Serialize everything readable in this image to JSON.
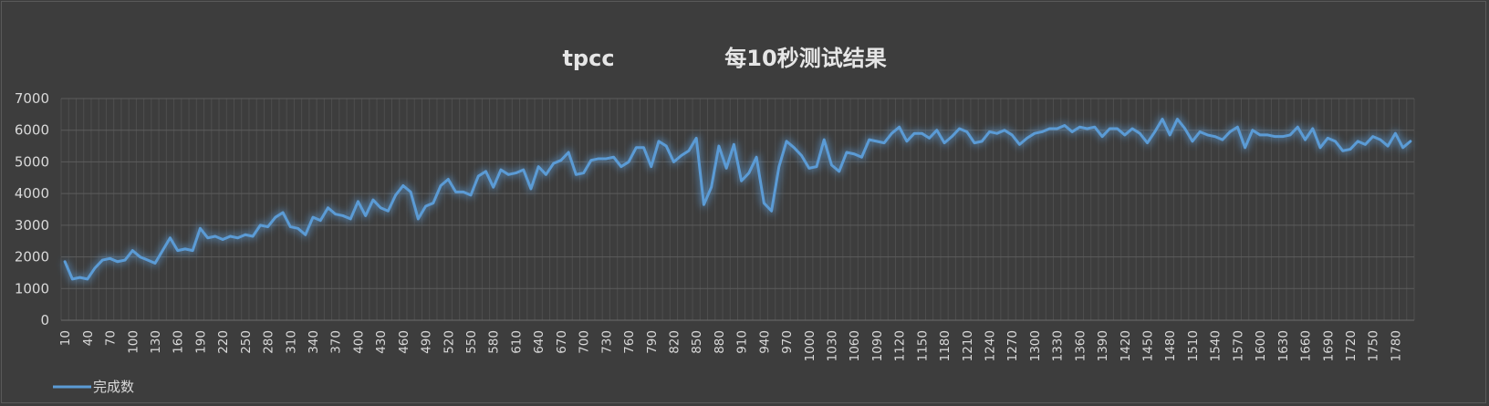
{
  "chart_data": {
    "type": "line",
    "title_parts": [
      "tpcc",
      "每10秒测试结果"
    ],
    "xlabel": "",
    "ylabel": "",
    "ylim": [
      0,
      7000
    ],
    "y_ticks": [
      0,
      1000,
      2000,
      3000,
      4000,
      5000,
      6000,
      7000
    ],
    "x_step": 10,
    "x_label_every": 3,
    "grid": true,
    "legend_position": "bottom-left",
    "series_color": "#5b9bd5",
    "series": [
      {
        "name": "完成数",
        "x": [
          10,
          20,
          30,
          40,
          50,
          60,
          70,
          80,
          90,
          100,
          110,
          120,
          130,
          140,
          150,
          160,
          170,
          180,
          190,
          200,
          210,
          220,
          230,
          240,
          250,
          260,
          270,
          280,
          290,
          300,
          310,
          320,
          330,
          340,
          350,
          360,
          370,
          380,
          390,
          400,
          410,
          420,
          430,
          440,
          450,
          460,
          470,
          480,
          490,
          500,
          510,
          520,
          530,
          540,
          550,
          560,
          570,
          580,
          590,
          600,
          610,
          620,
          630,
          640,
          650,
          660,
          670,
          680,
          690,
          700,
          710,
          720,
          730,
          740,
          750,
          760,
          770,
          780,
          790,
          800,
          810,
          820,
          830,
          840,
          850,
          860,
          870,
          880,
          890,
          900,
          910,
          920,
          930,
          940,
          950,
          960,
          970,
          980,
          990,
          1000,
          1010,
          1020,
          1030,
          1040,
          1050,
          1060,
          1070,
          1080,
          1090,
          1100,
          1110,
          1120,
          1130,
          1140,
          1150,
          1160,
          1170,
          1180,
          1190,
          1200,
          1210,
          1220,
          1230,
          1240,
          1250,
          1260,
          1270,
          1280,
          1290,
          1300,
          1310,
          1320,
          1330,
          1340,
          1350,
          1360,
          1370,
          1380,
          1390,
          1400,
          1410,
          1420,
          1430,
          1440,
          1450,
          1460,
          1470,
          1480,
          1490,
          1500,
          1510,
          1520,
          1530,
          1540,
          1550,
          1560,
          1570,
          1580,
          1590,
          1600,
          1610,
          1620,
          1630,
          1640,
          1650,
          1660,
          1670,
          1680,
          1690,
          1700,
          1710,
          1720,
          1730,
          1740,
          1750,
          1760,
          1770,
          1780,
          1790,
          1800
        ],
        "values": [
          1850,
          1300,
          1350,
          1300,
          1650,
          1900,
          1950,
          1850,
          1900,
          2200,
          2000,
          1900,
          1800,
          2200,
          2600,
          2200,
          2250,
          2200,
          2900,
          2600,
          2650,
          2550,
          2650,
          2600,
          2700,
          2650,
          3000,
          2950,
          3250,
          3400,
          2950,
          2900,
          2700,
          3250,
          3150,
          3550,
          3350,
          3300,
          3200,
          3750,
          3300,
          3800,
          3550,
          3450,
          3950,
          4250,
          4050,
          3200,
          3600,
          3700,
          4250,
          4450,
          4050,
          4050,
          3950,
          4550,
          4700,
          4200,
          4750,
          4600,
          4650,
          4750,
          4150,
          4850,
          4600,
          4950,
          5050,
          5300,
          4600,
          4650,
          5050,
          5100,
          5100,
          5150,
          4850,
          5000,
          5450,
          5450,
          4850,
          5650,
          5500,
          5000,
          5200,
          5350,
          5750,
          3650,
          4200,
          5500,
          4800,
          5550,
          4400,
          4650,
          5150,
          3700,
          3450,
          4850,
          5650,
          5450,
          5200,
          4800,
          4850,
          5700,
          4900,
          4700,
          5300,
          5250,
          5150,
          5700,
          5650,
          5600,
          5900,
          6100,
          5650,
          5900,
          5900,
          5750,
          6000,
          5600,
          5800,
          6050,
          5950,
          5600,
          5650,
          5950,
          5900,
          6000,
          5850,
          5550,
          5750,
          5900,
          5950,
          6050,
          6050,
          6150,
          5950,
          6100,
          6050,
          6100,
          5800,
          6050,
          6050,
          5850,
          6050,
          5900,
          5600,
          5950,
          6350,
          5850,
          6350,
          6050,
          5650,
          5950,
          5850,
          5800,
          5700,
          5950,
          6100,
          5450,
          6000,
          5850,
          5850,
          5800,
          5800,
          5850,
          6100,
          5700,
          6050,
          5450,
          5750,
          5650,
          5350,
          5400,
          5650,
          5550,
          5800,
          5700,
          5500,
          5900,
          5450,
          5650
        ]
      }
    ]
  }
}
